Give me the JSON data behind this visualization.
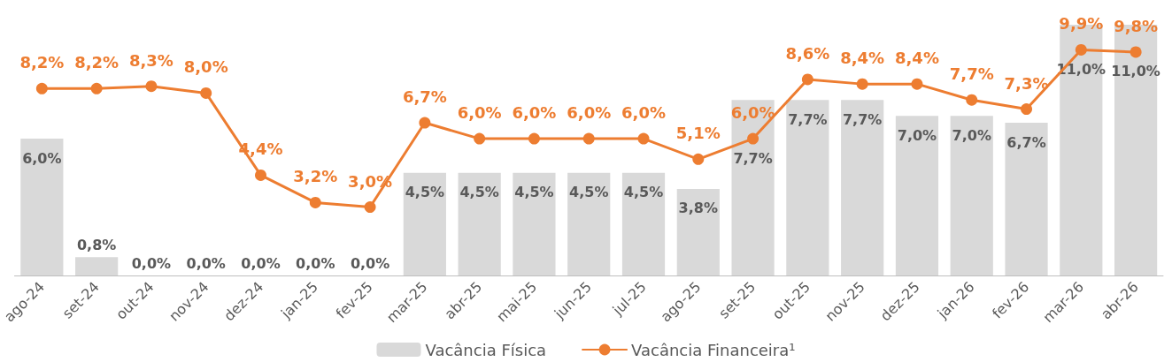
{
  "chart_data": {
    "type": "bar",
    "categories": [
      "ago-24",
      "set-24",
      "out-24",
      "nov-24",
      "dez-24",
      "jan-25",
      "fev-25",
      "mar-25",
      "abr-25",
      "mai-25",
      "jun-25",
      "jul-25",
      "ago-25",
      "set-25",
      "out-25",
      "nov-25",
      "dez-25",
      "jan-26",
      "fev-26",
      "mar-26",
      "abr-26"
    ],
    "series": [
      {
        "name": "Vacância Física",
        "color": "#d9d9d9",
        "values": [
          6.0,
          0.8,
          0,
          0,
          0,
          0,
          0,
          4.5,
          4.5,
          4.5,
          4.5,
          4.5,
          3.8,
          7.7,
          7.7,
          7.7,
          7.0,
          7.0,
          6.7,
          11.0,
          11.0
        ],
        "value_labels": [
          "6,0%",
          "0,8%",
          "0,0%",
          "0,0%",
          "0,0%",
          "0,0%",
          "0,0%",
          "4,5%",
          "4,5%",
          "4,5%",
          "4,5%",
          "4,5%",
          "3,8%",
          "7,7%",
          "7,7%",
          "7,7%",
          "7,0%",
          "7,0%",
          "6,7%",
          "11,0%",
          "11,0%"
        ]
      },
      {
        "name": "Vacância Financeira¹",
        "type": "line",
        "color": "#ed7d31",
        "values": [
          8.2,
          8.2,
          8.3,
          8.0,
          4.4,
          3.2,
          3.0,
          6.7,
          6.0,
          6.0,
          6.0,
          6.0,
          5.1,
          6.0,
          8.6,
          8.4,
          8.4,
          7.7,
          7.3,
          9.9,
          9.8
        ],
        "value_labels": [
          "8,2%",
          "8,2%",
          "8,3%",
          "8,0%",
          "4,4%",
          "3,2%",
          "3,0%",
          "6,7%",
          "6,0%",
          "6,0%",
          "6,0%",
          "6,0%",
          "5,1%",
          "6,0%",
          "8,6%",
          "8,4%",
          "8,4%",
          "7,7%",
          "7,3%",
          "9,9%",
          "9,8%"
        ]
      }
    ],
    "legend": "bottom",
    "grid": false,
    "marker": "circle",
    "line_style": "solid",
    "tick_labels": "x"
  }
}
